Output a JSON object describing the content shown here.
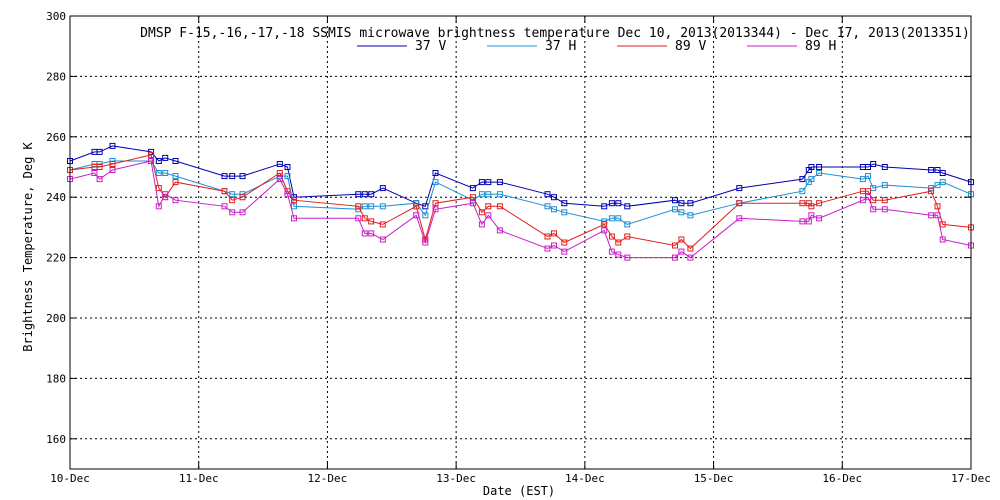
{
  "chart_data": {
    "type": "line",
    "title": "DMSP F-15,-16,-17,-18 SSMIS microwave brightness temperature Dec 10, 2013(2013344) - Dec 17, 2013(2013351)",
    "xlabel": "Date (EST)",
    "ylabel": "Brightness Temperature, Deg K",
    "xlim": [
      0,
      7
    ],
    "ylim": [
      150,
      300
    ],
    "x_ticks": [
      0,
      1,
      2,
      3,
      4,
      5,
      6,
      7
    ],
    "x_tick_labels": [
      "10-Dec",
      "11-Dec",
      "12-Dec",
      "13-Dec",
      "14-Dec",
      "15-Dec",
      "16-Dec",
      "17-Dec"
    ],
    "y_ticks": [
      160,
      180,
      200,
      220,
      240,
      260,
      280,
      300
    ],
    "y_tick_labels": [
      "160",
      "180",
      "200",
      "220",
      "240",
      "260",
      "280",
      "300"
    ],
    "grid": true,
    "legend_position": "top-center",
    "series": [
      {
        "name": "37 V",
        "color": "#0000b4",
        "x": [
          0.0,
          0.19,
          0.23,
          0.33,
          0.63,
          0.69,
          0.74,
          0.82,
          1.2,
          1.26,
          1.34,
          1.63,
          1.69,
          1.74,
          2.24,
          2.29,
          2.34,
          2.43,
          2.69,
          2.76,
          2.84,
          3.13,
          3.2,
          3.25,
          3.34,
          3.71,
          3.76,
          3.84,
          4.15,
          4.21,
          4.26,
          4.33,
          4.7,
          4.75,
          4.82,
          5.2,
          5.69,
          5.74,
          5.76,
          5.82,
          6.16,
          6.2,
          6.24,
          6.33,
          6.69,
          6.74,
          6.78,
          7.0
        ],
        "y": [
          252,
          255,
          255,
          257,
          255,
          252,
          253,
          252,
          247,
          247,
          247,
          251,
          250,
          240,
          241,
          241,
          241,
          243,
          238,
          237,
          248,
          243,
          245,
          245,
          245,
          241,
          240,
          238,
          237,
          238,
          238,
          237,
          239,
          238,
          238,
          243,
          246,
          249,
          250,
          250,
          250,
          250,
          251,
          250,
          249,
          249,
          248,
          245
        ]
      },
      {
        "name": "37 H",
        "color": "#1e8fd2",
        "x": [
          0.0,
          0.19,
          0.23,
          0.33,
          0.63,
          0.69,
          0.74,
          0.82,
          1.2,
          1.26,
          1.34,
          1.63,
          1.69,
          1.74,
          2.24,
          2.29,
          2.34,
          2.43,
          2.69,
          2.76,
          2.84,
          3.13,
          3.2,
          3.25,
          3.34,
          3.71,
          3.76,
          3.84,
          4.15,
          4.21,
          4.26,
          4.33,
          4.7,
          4.75,
          4.82,
          5.2,
          5.69,
          5.74,
          5.76,
          5.82,
          6.16,
          6.2,
          6.24,
          6.33,
          6.69,
          6.74,
          6.78,
          7.0
        ],
        "y": [
          249,
          251,
          251,
          252,
          252,
          248,
          248,
          247,
          242,
          241,
          241,
          247,
          247,
          237,
          236,
          237,
          237,
          237,
          238,
          234,
          245,
          239,
          241,
          241,
          241,
          237,
          236,
          235,
          232,
          233,
          233,
          231,
          236,
          235,
          234,
          238,
          242,
          245,
          246,
          248,
          246,
          247,
          243,
          244,
          243,
          244,
          245,
          241
        ]
      },
      {
        "name": "89 V",
        "color": "#e11e1e",
        "x": [
          0.0,
          0.19,
          0.23,
          0.33,
          0.63,
          0.69,
          0.74,
          0.82,
          1.2,
          1.26,
          1.34,
          1.63,
          1.69,
          1.74,
          2.24,
          2.29,
          2.34,
          2.43,
          2.69,
          2.76,
          2.84,
          3.13,
          3.2,
          3.25,
          3.34,
          3.71,
          3.76,
          3.84,
          4.15,
          4.21,
          4.26,
          4.33,
          4.7,
          4.75,
          4.82,
          5.2,
          5.69,
          5.74,
          5.76,
          5.82,
          6.16,
          6.2,
          6.24,
          6.33,
          6.69,
          6.74,
          6.78,
          7.0
        ],
        "y": [
          249,
          250,
          250,
          251,
          254,
          243,
          240,
          245,
          242,
          239,
          240,
          248,
          242,
          239,
          237,
          233,
          232,
          231,
          237,
          226,
          238,
          240,
          235,
          237,
          237,
          227,
          228,
          225,
          231,
          227,
          225,
          227,
          224,
          226,
          223,
          238,
          238,
          238,
          237,
          238,
          242,
          242,
          239,
          239,
          242,
          237,
          231,
          230
        ]
      },
      {
        "name": "89 H",
        "color": "#c81ec8",
        "x": [
          0.0,
          0.19,
          0.23,
          0.33,
          0.63,
          0.69,
          0.74,
          0.82,
          1.2,
          1.26,
          1.34,
          1.63,
          1.69,
          1.74,
          2.24,
          2.29,
          2.34,
          2.43,
          2.69,
          2.76,
          2.84,
          3.13,
          3.2,
          3.25,
          3.34,
          3.71,
          3.76,
          3.84,
          4.15,
          4.21,
          4.26,
          4.33,
          4.7,
          4.75,
          4.82,
          5.2,
          5.69,
          5.74,
          5.76,
          5.82,
          6.16,
          6.2,
          6.24,
          6.33,
          6.69,
          6.74,
          6.78,
          7.0
        ],
        "y": [
          246,
          248,
          246,
          249,
          252,
          237,
          241,
          239,
          237,
          235,
          235,
          246,
          241,
          233,
          233,
          228,
          228,
          226,
          234,
          225,
          236,
          238,
          231,
          234,
          229,
          223,
          224,
          222,
          229,
          222,
          221,
          220,
          220,
          222,
          220,
          233,
          232,
          232,
          234,
          233,
          239,
          240,
          236,
          236,
          234,
          234,
          226,
          224
        ]
      }
    ]
  }
}
